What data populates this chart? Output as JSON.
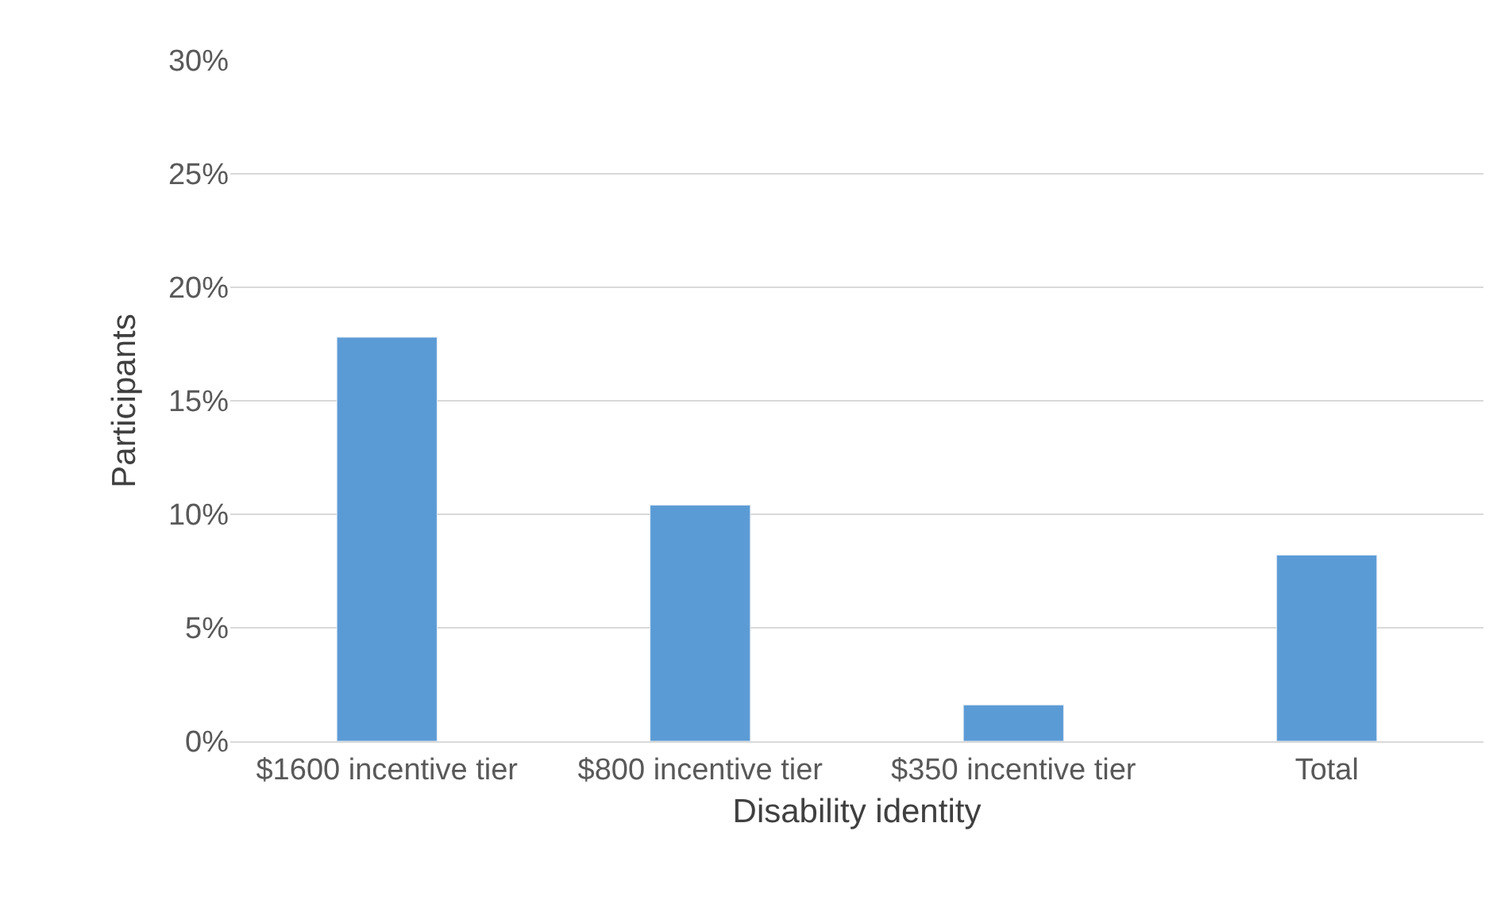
{
  "chart_data": {
    "type": "bar",
    "xlabel": "Disability identity",
    "ylabel": "Participants",
    "categories": [
      "$1600 incentive tier",
      "$800 incentive tier",
      "$350 incentive tier",
      "Total"
    ],
    "values": [
      17.8,
      10.4,
      1.6,
      8.2
    ],
    "color": "#5b9bd5",
    "ylim": [
      0,
      30
    ],
    "yticks": [
      {
        "value": 0,
        "label": "0%"
      },
      {
        "value": 5,
        "label": "5%"
      },
      {
        "value": 10,
        "label": "10%"
      },
      {
        "value": 15,
        "label": "15%"
      },
      {
        "value": 20,
        "label": "20%"
      },
      {
        "value": 25,
        "label": "25%"
      },
      {
        "value": 30,
        "label": "30%"
      }
    ],
    "grid": "y",
    "legend": false
  }
}
